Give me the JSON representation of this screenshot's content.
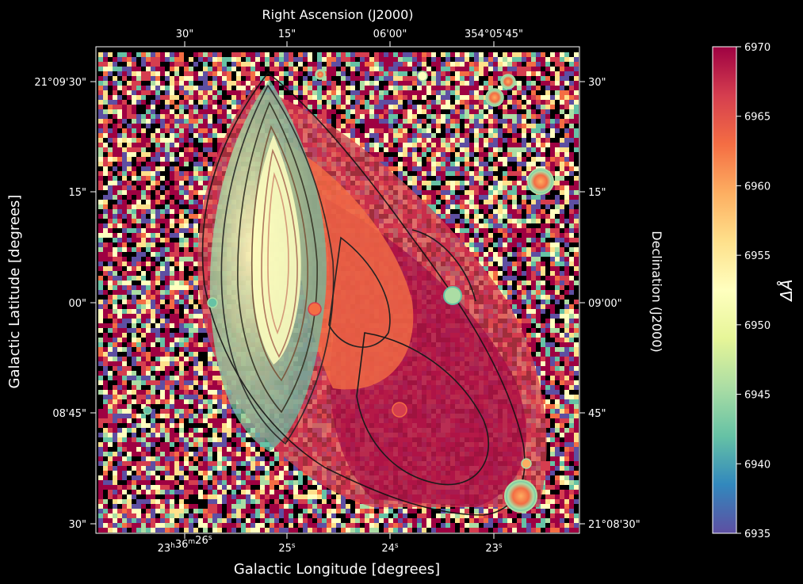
{
  "chart_data": {
    "type": "heatmap",
    "top_axis_label": "Right Ascension (J2000)",
    "top_ticks": [
      "30\"",
      "15\"",
      "06'00\"",
      "354°05'45\""
    ],
    "bottom_axis_label": "Galactic Longitude [degrees]",
    "bottom_ticks": [
      {
        "main": "23",
        "sup1": "h",
        "mid": "36",
        "sup2": "m",
        "sec": "26",
        "sup3": "s"
      },
      {
        "main": "",
        "sup1": "",
        "mid": "",
        "sup2": "",
        "sec": "25",
        "sup3": "s"
      },
      {
        "main": "",
        "sup1": "",
        "mid": "",
        "sup2": "",
        "sec": "24",
        "sup3": "s"
      },
      {
        "main": "",
        "sup1": "",
        "mid": "",
        "sup2": "",
        "sec": "23",
        "sup3": "s"
      }
    ],
    "left_axis_label": "Galactic Latitude [degrees]",
    "left_ticks": [
      "21°09'30\"",
      "15\"",
      "00\"",
      "08'45\"",
      "30\""
    ],
    "right_axis_label": "Declination (J2000)",
    "right_ticks": [
      "30\"",
      "15\"",
      "09'00\"",
      "45\"",
      "21°08'30\""
    ],
    "colorbar": {
      "label": "ΔÅ",
      "colormap": "Spectral_r",
      "min": 6935,
      "max": 6970,
      "ticks": [
        6935,
        6940,
        6945,
        6950,
        6955,
        6960,
        6965,
        6970
      ]
    },
    "colors": {
      "background": "#000000",
      "spectral_r": [
        "#5e4fa2",
        "#3288bd",
        "#66c2a5",
        "#abdda4",
        "#e6f598",
        "#ffffbf",
        "#fee08b",
        "#fdae61",
        "#f46d43",
        "#d53e4f",
        "#9e0142"
      ]
    }
  }
}
